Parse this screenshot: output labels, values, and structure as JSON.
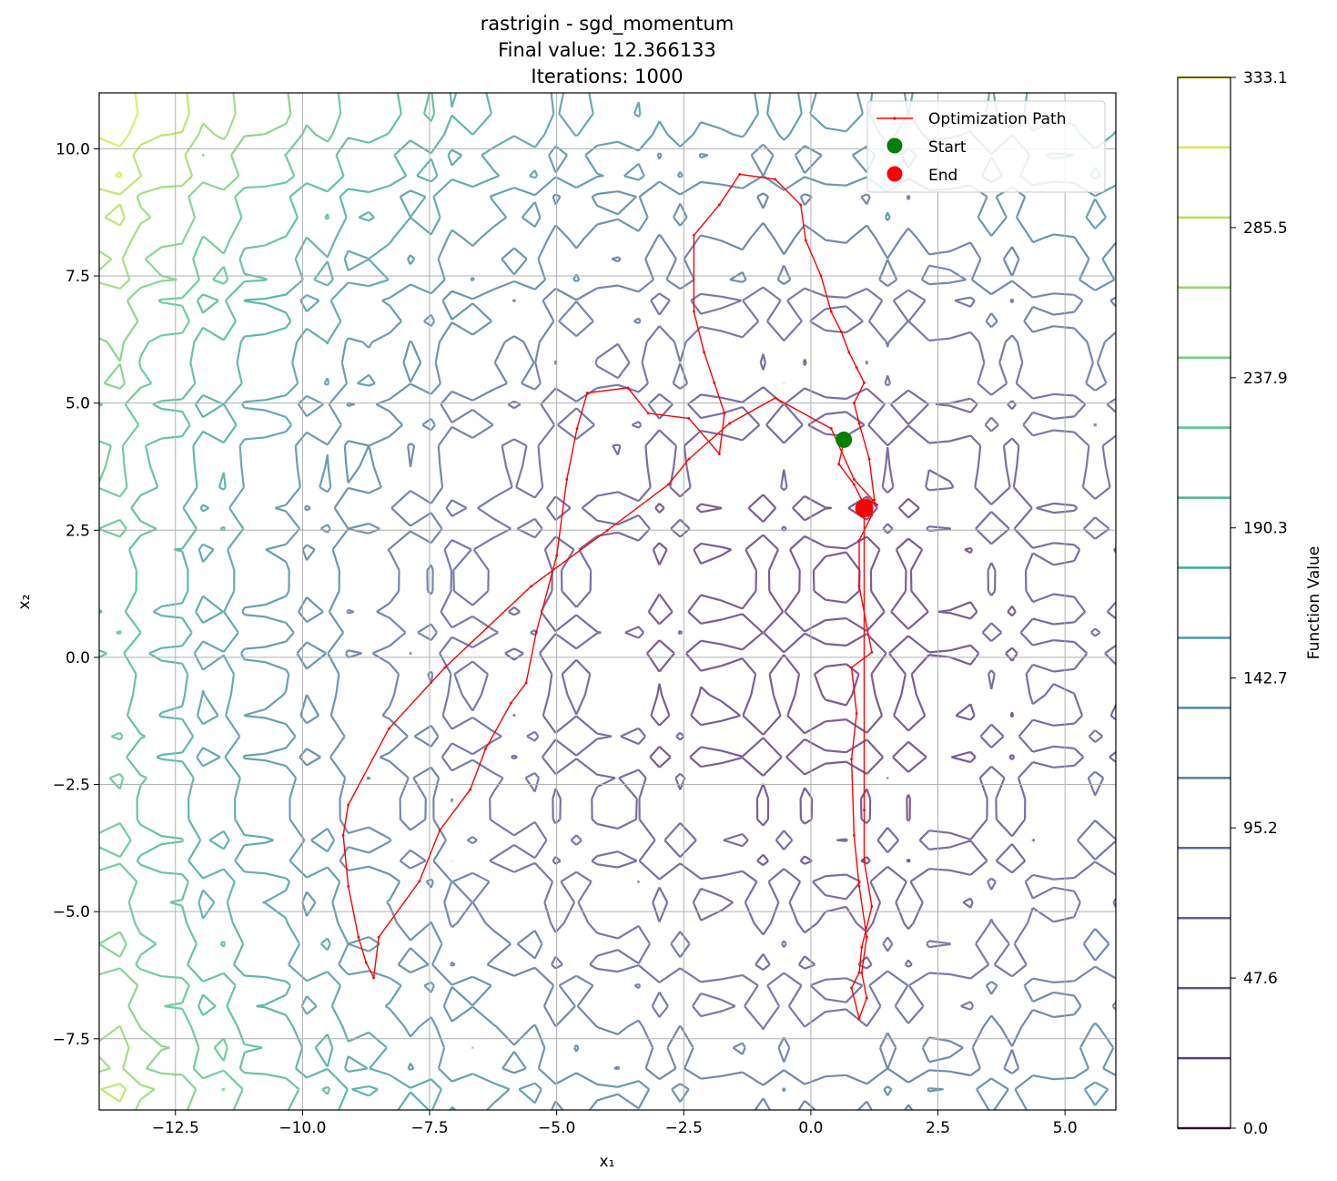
{
  "chart_data": {
    "type": "line",
    "title": [
      "rastrigin - sgd_momentum",
      "Final value: 12.366133",
      "Iterations: 1000"
    ],
    "xlabel": "x₁",
    "ylabel": "x₂",
    "xlim": [
      -14.0,
      6.0
    ],
    "ylim": [
      -8.9,
      11.1
    ],
    "xticks": [
      -12.5,
      -10.0,
      -7.5,
      -5.0,
      -2.5,
      0.0,
      2.5,
      5.0
    ],
    "xtick_labels": [
      "−12.5",
      "−10.0",
      "−7.5",
      "−5.0",
      "−2.5",
      "0.0",
      "2.5",
      "5.0"
    ],
    "yticks": [
      -7.5,
      -5.0,
      -2.5,
      0.0,
      2.5,
      5.0,
      7.5,
      10.0
    ],
    "ytick_labels": [
      "−7.5",
      "−5.0",
      "−2.5",
      "0.0",
      "2.5",
      "5.0",
      "7.5",
      "10.0"
    ],
    "grid": true,
    "background": {
      "type": "contour",
      "function": "rastrigin",
      "levels": 14,
      "colormap": "viridis",
      "alpha": 0.7
    },
    "colorbar": {
      "label": "Function Value",
      "range": [
        0.0,
        333.1
      ],
      "ticks": [
        0.0,
        47.6,
        95.2,
        142.7,
        190.3,
        237.9,
        285.5,
        333.1
      ],
      "tick_labels": [
        "0.0",
        "47.6",
        "95.2",
        "142.7",
        "190.3",
        "237.9",
        "285.5",
        "333.1"
      ],
      "colors": [
        "#440154",
        "#482878",
        "#3e4989",
        "#31688e",
        "#26828e",
        "#1f9e89",
        "#35b779",
        "#6ece58",
        "#b5de2b",
        "#fde725"
      ]
    },
    "legend": {
      "placement": "top-right",
      "entries": [
        "Optimization Path",
        "Start",
        "End"
      ]
    },
    "series": [
      {
        "name": "Optimization Path",
        "color": "#ff0000",
        "x": [
          0.65,
          0.55,
          0.85,
          1.05,
          1.25,
          1.15,
          0.95,
          0.85,
          1.05,
          0.9,
          0.75,
          0.6,
          0.4,
          0.2,
          -0.1,
          -0.2,
          -0.7,
          -1.4,
          -1.8,
          -2.3,
          -2.3,
          -2.1,
          -1.9,
          -1.7,
          -1.8,
          -2.4,
          -3.2,
          -3.6,
          -4.4,
          -4.6,
          -4.8,
          -5.0,
          -5.4,
          -5.6,
          -5.9,
          -6.4,
          -6.7,
          -7.3,
          -7.7,
          -8.5,
          -8.6,
          -8.75,
          -8.9,
          -9.1,
          -9.2,
          -9.1,
          -8.3,
          -7.2,
          -5.5,
          -4.0,
          -2.8,
          -2.4,
          -1.6,
          -0.7,
          0.4,
          0.85,
          1.3,
          1.1,
          1.05,
          1.2,
          0.95,
          0.95,
          1.2,
          0.8,
          0.9,
          0.8,
          0.85,
          0.95,
          1.1,
          1.0,
          1.1,
          0.95,
          0.8,
          0.95,
          1.0,
          1.2,
          1.05,
          1.05,
          1.05
        ],
        "y": [
          4.25,
          3.8,
          3.4,
          3.0,
          3.1,
          3.9,
          4.6,
          5.0,
          5.4,
          5.7,
          6.0,
          6.4,
          6.8,
          7.5,
          8.2,
          8.9,
          9.4,
          9.5,
          8.9,
          8.3,
          6.8,
          6.0,
          5.4,
          4.8,
          4.0,
          4.7,
          4.8,
          5.3,
          5.2,
          4.5,
          3.5,
          2.0,
          0.5,
          -0.5,
          -0.9,
          -1.8,
          -2.6,
          -3.4,
          -4.4,
          -5.5,
          -6.3,
          -6.0,
          -5.5,
          -4.5,
          -3.5,
          -2.9,
          -1.4,
          -0.2,
          1.4,
          2.5,
          3.4,
          3.9,
          4.6,
          5.1,
          4.5,
          3.5,
          3.0,
          3.1,
          2.9,
          2.8,
          2.3,
          1.4,
          0.1,
          -0.2,
          -1.1,
          -2.0,
          -3.5,
          -4.5,
          -5.5,
          -6.2,
          -6.7,
          -7.1,
          -6.5,
          -6.2,
          -5.7,
          -4.9,
          -4.0,
          -3.0,
          2.93
        ]
      },
      {
        "name": "Start",
        "color": "#008000",
        "x": [
          0.65
        ],
        "y": [
          4.28
        ]
      },
      {
        "name": "End",
        "color": "#ff0000",
        "x": [
          1.05
        ],
        "y": [
          2.93
        ]
      }
    ]
  }
}
